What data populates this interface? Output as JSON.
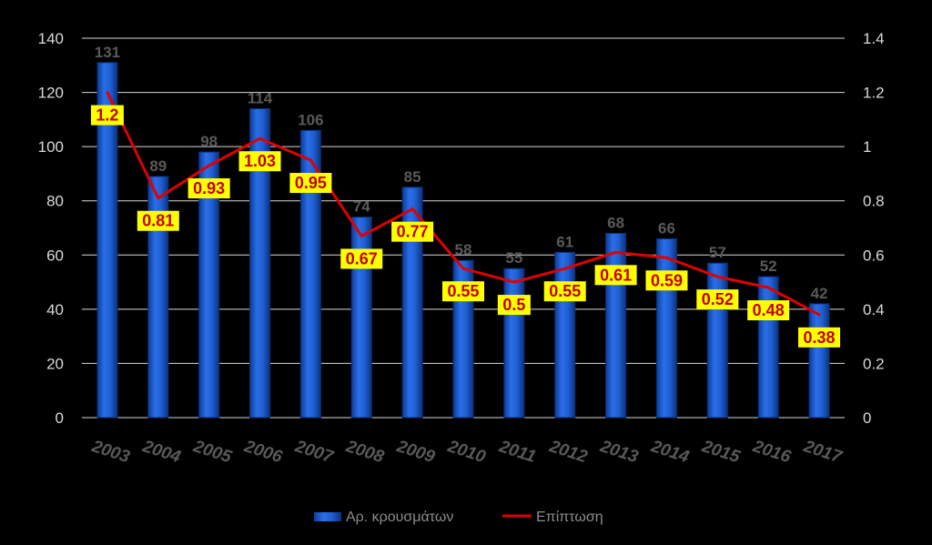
{
  "chart_data": {
    "type": "bar",
    "categories": [
      "2003",
      "2004",
      "2005",
      "2006",
      "2007",
      "2008",
      "2009",
      "2010",
      "2011",
      "2012",
      "2013",
      "2014",
      "2015",
      "2016",
      "2017"
    ],
    "series": [
      {
        "name": "Αρ. κρουσμάτων",
        "type": "bar",
        "axis": "left",
        "values": [
          131,
          89,
          98,
          114,
          106,
          74,
          85,
          58,
          55,
          61,
          68,
          66,
          57,
          52,
          42
        ]
      },
      {
        "name": "Επίπτωση",
        "type": "line",
        "axis": "right",
        "values": [
          1.2,
          0.81,
          0.93,
          1.03,
          0.95,
          0.67,
          0.77,
          0.55,
          0.5,
          0.55,
          0.61,
          0.59,
          0.52,
          0.48,
          0.38
        ]
      }
    ],
    "y_left": {
      "ylim": [
        0,
        140
      ],
      "ticks": [
        "0",
        "20",
        "40",
        "60",
        "80",
        "100",
        "120",
        "140"
      ]
    },
    "y_right": {
      "ylim": [
        0,
        1.4
      ],
      "ticks": [
        "0",
        "0.2",
        "0.4",
        "0.6",
        "0.8",
        "1",
        "1.2",
        "1.4"
      ]
    },
    "grid": true,
    "legend": "bottom",
    "colors": {
      "bar": "#1f5fd1",
      "bar_dark": "#0b3a8f",
      "line": "#e00000",
      "line_label_bg": "#ffff00",
      "line_label_text": "#c00000",
      "grid": "#d9d9d9",
      "background": "#000000"
    }
  }
}
